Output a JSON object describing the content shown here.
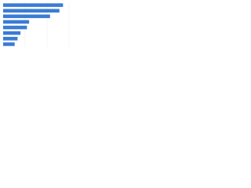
{
  "chart_data": {
    "type": "hbar",
    "categories": [
      null,
      null,
      null,
      null,
      null,
      null,
      null,
      null
    ],
    "values": [
      83,
      78,
      65,
      36,
      33,
      24,
      20,
      16
    ],
    "color": "#3a7bd5",
    "xlim": [
      0,
      100
    ]
  }
}
